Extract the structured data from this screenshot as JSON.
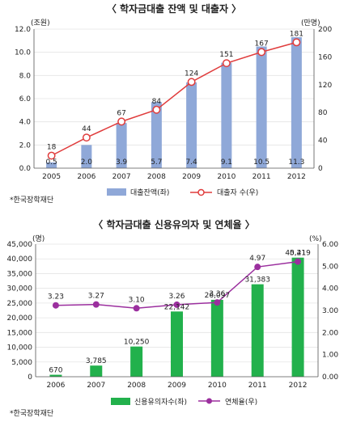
{
  "chart_data": [
    {
      "type": "bar",
      "title": "〈 학자금대출 잔액 및 대출자 〉",
      "left_unit": "(조원)",
      "right_unit": "(만명)",
      "categories": [
        "2005",
        "2006",
        "2007",
        "2008",
        "2009",
        "2010",
        "2011",
        "2012"
      ],
      "ylim_left": [
        0,
        12
      ],
      "yticks_left": [
        "0.0",
        "2.0",
        "4.0",
        "6.0",
        "8.0",
        "10.0",
        "12.0"
      ],
      "ylim_right": [
        0,
        200
      ],
      "yticks_right": [
        "0",
        "40",
        "80",
        "120",
        "160",
        "200"
      ],
      "series": [
        {
          "name": "대출잔액(좌)",
          "type": "bar",
          "axis": "left",
          "color": "#8fa8d8",
          "values": [
            0.5,
            2.0,
            3.9,
            5.7,
            7.4,
            9.1,
            10.5,
            11.3
          ],
          "labels": [
            "0.5",
            "2.0",
            "3.9",
            "5.7",
            "7.4",
            "9.1",
            "10.5",
            "11.3"
          ]
        },
        {
          "name": "대출자 수(우)",
          "type": "line",
          "axis": "right",
          "color": "#e03c3c",
          "values": [
            18,
            44,
            67,
            84,
            124,
            151,
            167,
            181
          ],
          "labels": [
            "18",
            "44",
            "67",
            "84",
            "124",
            "151",
            "167",
            "181"
          ]
        }
      ],
      "source": "*한국장학재단",
      "grid": true,
      "legend_position": "bottom"
    },
    {
      "type": "bar",
      "title": "〈 학자금대출 신용유의자 및 연체율 〉",
      "left_unit": "(명)",
      "right_unit": "(%)",
      "categories": [
        "2006",
        "2007",
        "2008",
        "2009",
        "2010",
        "2011",
        "2012"
      ],
      "ylim_left": [
        0,
        45000
      ],
      "yticks_left": [
        "0",
        "5,000",
        "10,000",
        "15,000",
        "20,000",
        "25,000",
        "30,000",
        "35,000",
        "40,000",
        "45,000"
      ],
      "ylim_right": [
        0,
        6
      ],
      "yticks_right": [
        "0.00",
        "1.00",
        "2.00",
        "3.00",
        "4.00",
        "5.00",
        "6.00"
      ],
      "series": [
        {
          "name": "신용유의자수(좌)",
          "type": "bar",
          "axis": "left",
          "color": "#22b14c",
          "values": [
            670,
            3785,
            10250,
            22142,
            26097,
            31383,
            40419
          ],
          "labels": [
            "670",
            "3,785",
            "10,250",
            "22,142",
            "26,097",
            "31,383",
            "40,419"
          ]
        },
        {
          "name": "연체율(우)",
          "type": "line",
          "axis": "right",
          "color": "#9b2f9e",
          "values": [
            3.23,
            3.27,
            3.1,
            3.26,
            3.36,
            4.97,
            5.21
          ],
          "labels": [
            "3.23",
            "3.27",
            "3.10",
            "3.26",
            "3.36",
            "4.97",
            "5.21"
          ]
        }
      ],
      "source": "*한국장학재단",
      "grid": true,
      "legend_position": "bottom"
    }
  ]
}
